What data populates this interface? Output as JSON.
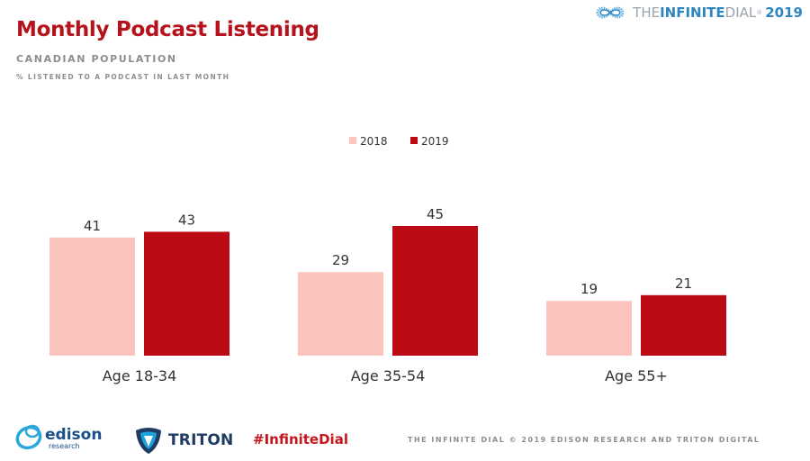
{
  "header": {
    "title": "Monthly Podcast Listening",
    "subtitle": "CANADIAN POPULATION",
    "note": "% LISTENED TO A PODCAST IN LAST MONTH"
  },
  "brand": {
    "prefix": "THE ",
    "highlight": "INFINITE",
    "suffix": " DIAL",
    "reg": "®",
    "year": "2019"
  },
  "chart_data": {
    "type": "bar",
    "categories": [
      "Age 18-34",
      "Age 35-54",
      "Age 55+"
    ],
    "series": [
      {
        "name": "2018",
        "values": [
          41,
          29,
          19
        ],
        "color": "#fbc4bd"
      },
      {
        "name": "2019",
        "values": [
          43,
          45,
          21
        ],
        "color": "#bb0a14"
      }
    ],
    "ylim": [
      0,
      50
    ],
    "legend": "top-center",
    "grid": false
  },
  "footer": {
    "edison_name": "edison",
    "edison_sub": "research",
    "triton_name": "TRITON",
    "hashtag": "#InfiniteDial",
    "copyright": "THE INFINITE DIAL   © 2019 EDISON RESEARCH AND TRITON DIGITAL"
  },
  "colors": {
    "title": "#b5121b",
    "axis_text": "#333333",
    "muted": "#8e8e8e",
    "accent_blue": "#2e86c1"
  }
}
